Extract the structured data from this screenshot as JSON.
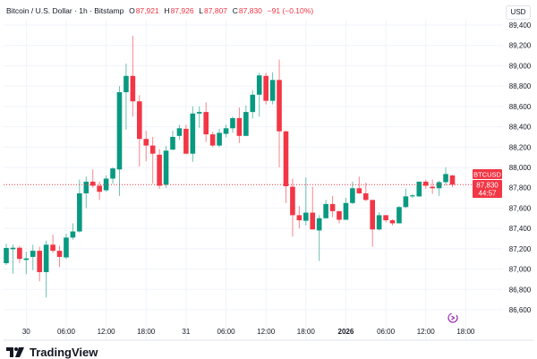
{
  "header": {
    "symbol_title": "Bitcoin / U.S. Dollar · 1h · Bitstamp",
    "open_label": "O",
    "open": "87,921",
    "high_label": "H",
    "high": "87,926",
    "low_label": "L",
    "low": "87,807",
    "close_label": "C",
    "close": "87,830",
    "change": "−91 (−0.10%)"
  },
  "currency": "USD",
  "price_tag": {
    "symbol": "BTCUSD",
    "price": "87,830",
    "countdown": "44:57"
  },
  "branding": {
    "name": "TradingView"
  },
  "icons": {
    "time_jump": "time-jump-icon"
  },
  "colors": {
    "up": "#089981",
    "down": "#f23645",
    "grid": "#f0f3fa",
    "accent": "#9c27b0"
  },
  "chart_data": {
    "type": "candlestick",
    "title": "Bitcoin / U.S. Dollar · 1h · Bitstamp",
    "ylim": [
      86500,
      89500
    ],
    "y_ticks": [
      "89,400",
      "89,200",
      "89,000",
      "88,800",
      "88,600",
      "88,400",
      "88,200",
      "88,000",
      "87,800",
      "87,600",
      "87,400",
      "87,200",
      "87,000",
      "86,800",
      "86,600"
    ],
    "x_ticks": [
      {
        "label": "30",
        "index": 3
      },
      {
        "label": "06:00",
        "index": 9
      },
      {
        "label": "12:00",
        "index": 15
      },
      {
        "label": "18:00",
        "index": 21
      },
      {
        "label": "31",
        "index": 27
      },
      {
        "label": "06:00",
        "index": 33
      },
      {
        "label": "12:00",
        "index": 39
      },
      {
        "label": "18:00",
        "index": 45
      },
      {
        "label": "2026",
        "index": 51,
        "bold": true
      },
      {
        "label": "06:00",
        "index": 57
      },
      {
        "label": "12:00",
        "index": 63
      },
      {
        "label": "18:00",
        "index": 69
      }
    ],
    "grid": true,
    "last_price": 87830,
    "candles": [
      [
        87058,
        87250,
        87040,
        87208
      ],
      [
        87195,
        87240,
        86955,
        87210
      ],
      [
        87210,
        87230,
        87060,
        87100
      ],
      [
        87090,
        87170,
        86950,
        87105
      ],
      [
        87120,
        87240,
        86990,
        87180
      ],
      [
        87180,
        87220,
        86880,
        86970
      ],
      [
        86970,
        87280,
        86720,
        87240
      ],
      [
        87240,
        87340,
        87160,
        87180
      ],
      [
        87180,
        87230,
        87020,
        87120
      ],
      [
        87115,
        87350,
        87100,
        87310
      ],
      [
        87310,
        87450,
        87290,
        87370
      ],
      [
        87370,
        87880,
        87360,
        87745
      ],
      [
        87745,
        87910,
        87600,
        87860
      ],
      [
        87860,
        87980,
        87800,
        87820
      ],
      [
        87820,
        87860,
        87680,
        87760
      ],
      [
        87775,
        87920,
        87760,
        87890
      ],
      [
        87890,
        88000,
        87840,
        87990
      ],
      [
        87980,
        88800,
        87720,
        88740
      ],
      [
        88740,
        89020,
        88370,
        88900
      ],
      [
        88900,
        89295,
        88500,
        88650
      ],
      [
        88650,
        88710,
        88010,
        88280
      ],
      [
        88280,
        88360,
        88060,
        88215
      ],
      [
        88215,
        88300,
        87840,
        88135
      ],
      [
        88125,
        88180,
        87790,
        87820
      ],
      [
        87830,
        88210,
        87800,
        88165
      ],
      [
        88175,
        88360,
        88170,
        88300
      ],
      [
        88310,
        88420,
        88270,
        88385
      ],
      [
        88380,
        88420,
        88130,
        88135
      ],
      [
        88135,
        88600,
        88055,
        88530
      ],
      [
        88530,
        88600,
        88390,
        88545
      ],
      [
        88545,
        88640,
        88250,
        88325
      ],
      [
        88325,
        88350,
        88200,
        88215
      ],
      [
        88215,
        88380,
        88200,
        88340
      ],
      [
        88330,
        88420,
        88295,
        88385
      ],
      [
        88385,
        88500,
        88340,
        88485
      ],
      [
        88485,
        88590,
        88240,
        88310
      ],
      [
        88310,
        88610,
        88310,
        88545
      ],
      [
        88545,
        88760,
        88480,
        88715
      ],
      [
        88715,
        88930,
        88500,
        88905
      ],
      [
        88900,
        88930,
        88620,
        88655
      ],
      [
        88655,
        88935,
        88620,
        88860
      ],
      [
        88860,
        89060,
        88000,
        88355
      ],
      [
        88355,
        88360,
        87650,
        87815
      ],
      [
        87810,
        87890,
        87320,
        87530
      ],
      [
        87530,
        87620,
        87400,
        87480
      ],
      [
        87475,
        87900,
        87430,
        87555
      ],
      [
        87555,
        87810,
        87390,
        87390
      ],
      [
        87380,
        87530,
        87080,
        87500
      ],
      [
        87500,
        87680,
        87500,
        87640
      ],
      [
        87640,
        87720,
        87510,
        87570
      ],
      [
        87570,
        87570,
        87450,
        87485
      ],
      [
        87485,
        87700,
        87485,
        87650
      ],
      [
        87650,
        87860,
        87640,
        87795
      ],
      [
        87795,
        87910,
        87740,
        87745
      ],
      [
        87745,
        87850,
        87670,
        87680
      ],
      [
        87680,
        87680,
        87220,
        87390
      ],
      [
        87390,
        87560,
        87380,
        87530
      ],
      [
        87530,
        87530,
        87460,
        87480
      ],
      [
        87480,
        87490,
        87430,
        87450
      ],
      [
        87450,
        87620,
        87450,
        87610
      ],
      [
        87610,
        87790,
        87600,
        87715
      ],
      [
        87715,
        87740,
        87700,
        87725
      ],
      [
        87715,
        87860,
        87710,
        87860
      ],
      [
        87860,
        87880,
        87790,
        87820
      ],
      [
        87810,
        87880,
        87740,
        87795
      ],
      [
        87795,
        87870,
        87720,
        87855
      ],
      [
        87855,
        88000,
        87820,
        87935
      ],
      [
        87921,
        87926,
        87807,
        87830
      ]
    ]
  }
}
